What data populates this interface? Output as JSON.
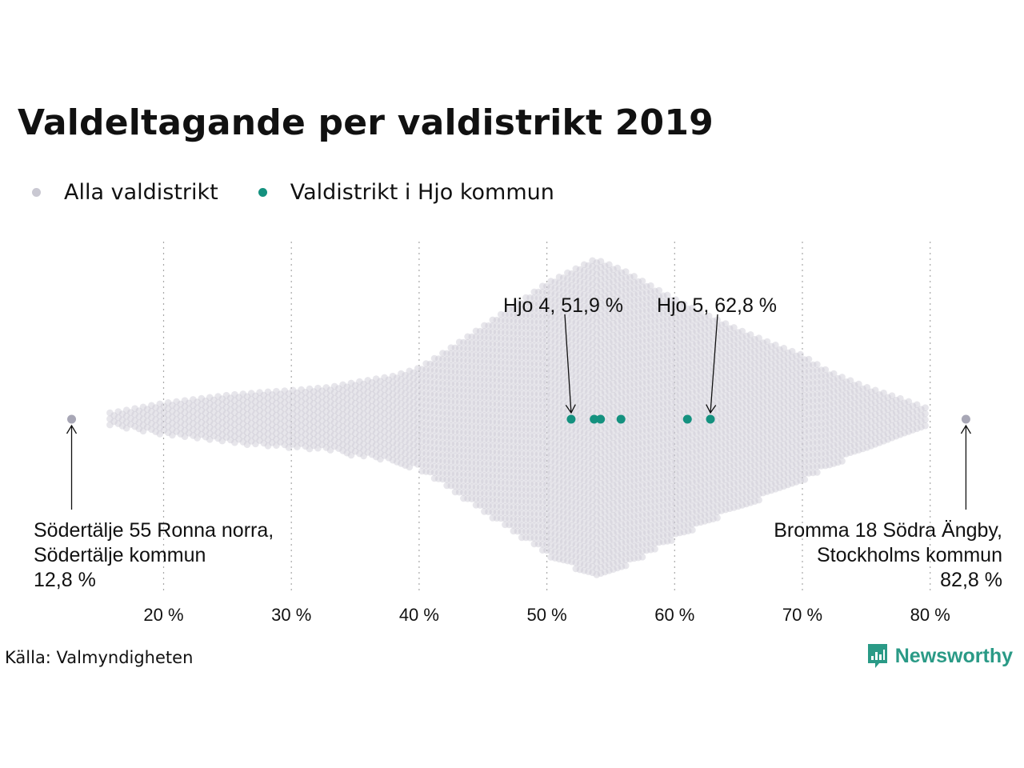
{
  "title": "Valdeltagande per valdistrikt 2019",
  "legend": {
    "all": {
      "label": "Alla valdistrikt",
      "color": "#c9c8d2"
    },
    "hjo": {
      "label": "Valdistrikt i Hjo kommun",
      "color": "#14917f"
    }
  },
  "source": "Källa: Valmyndigheten",
  "brand": {
    "label": "Newsworthy",
    "color": "#2a9a86",
    "icon": "newsworthy-logo-icon"
  },
  "chart_data": {
    "type": "scatter",
    "subtype": "beeswarm",
    "title": "Valdeltagande per valdistrikt 2019",
    "xlabel": "",
    "ylabel": "",
    "xlim": [
      10,
      85
    ],
    "x_ticks": [
      20,
      30,
      40,
      50,
      60,
      70,
      80
    ],
    "x_tick_labels": [
      "20 %",
      "30 %",
      "40 %",
      "50 %",
      "60 %",
      "70 %",
      "80 %"
    ],
    "grid": "vertical dotted",
    "legend_position": "top-left",
    "series": [
      {
        "name": "Alla valdistrikt",
        "color": "#c9c8d2",
        "distribution_profile": {
          "x": [
            12.8,
            16,
            18,
            20,
            22,
            25,
            28,
            30,
            33,
            35,
            38,
            40,
            42,
            45,
            48,
            50,
            52,
            53.8,
            56,
            58,
            60,
            62,
            65,
            68,
            70,
            72,
            75,
            78,
            80,
            82.8
          ],
          "relative_density": [
            0.03,
            0.04,
            0.07,
            0.1,
            0.12,
            0.15,
            0.17,
            0.18,
            0.2,
            0.23,
            0.27,
            0.32,
            0.42,
            0.58,
            0.74,
            0.85,
            0.93,
            1.0,
            0.93,
            0.84,
            0.75,
            0.67,
            0.56,
            0.46,
            0.4,
            0.3,
            0.2,
            0.12,
            0.06,
            0.03
          ]
        },
        "extremes": [
          {
            "name": "Södertälje 55 Ronna norra, Södertälje kommun",
            "value": 12.8
          },
          {
            "name": "Bromma 18 Södra Ängby, Stockholms kommun",
            "value": 82.8
          }
        ]
      },
      {
        "name": "Valdistrikt i Hjo kommun",
        "color": "#14917f",
        "values": [
          51.9,
          53.7,
          54.2,
          55.8,
          61.0,
          62.8
        ]
      }
    ],
    "annotations": [
      {
        "lines": [
          "Hjo 4, 51,9 %"
        ],
        "value": 51.9
      },
      {
        "lines": [
          "Hjo 5, 62,8 %"
        ],
        "value": 62.8
      },
      {
        "lines": [
          "Södertälje 55 Ronna norra,",
          "Södertälje kommun",
          "12,8 %"
        ],
        "value": 12.8
      },
      {
        "lines": [
          "Bromma 18 Södra Ängby,",
          "Stockholms kommun",
          "82,8 %"
        ],
        "value": 82.8
      }
    ]
  }
}
